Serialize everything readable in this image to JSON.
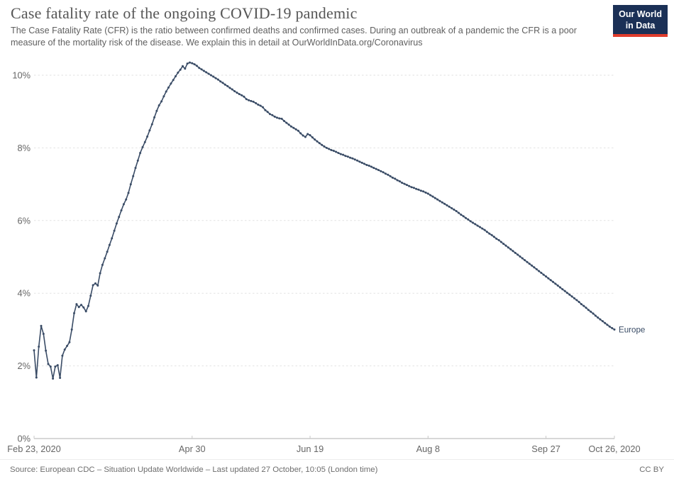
{
  "header": {
    "title": "Case fatality rate of the ongoing COVID-19 pandemic",
    "subtitle_lines": [
      "The Case Fatality Rate (CFR) is the ratio between confirmed deaths and confirmed cases. During an outbreak of a pandemic the CFR is a poor",
      "measure of the mortality risk of the disease. We explain this in detail at OurWorldInData.org/Coronavirus"
    ],
    "logo_line1": "Our World",
    "logo_line2": "in Data"
  },
  "footer": {
    "source": "Source: European CDC – Situation Update Worldwide – Last updated 27 October, 10:05 (London time)",
    "license": "CC BY"
  },
  "colors": {
    "series": "#3a4c66",
    "gridline": "#e2e2e2",
    "axis_line": "#b0b0b0",
    "tick_label": "#666666",
    "logo_bg": "#1b3056",
    "logo_stripe": "#e03c2c"
  },
  "chart_data": {
    "type": "line",
    "title": "Case fatality rate of the ongoing COVID-19 pandemic",
    "grid": "dashed-horizontal",
    "legend": "end-of-line-label",
    "ylim": [
      0,
      10.8
    ],
    "y_ticks": [
      0,
      2,
      4,
      6,
      8,
      10
    ],
    "y_tick_suffix": "%",
    "x_start_date": "2020-02-23",
    "x_end_date": "2020-10-26",
    "x_cadence": "daily",
    "x_ticks": [
      {
        "label": "Feb 23, 2020",
        "day": 0
      },
      {
        "label": "Apr 30",
        "day": 67
      },
      {
        "label": "Jun 19",
        "day": 117
      },
      {
        "label": "Aug 8",
        "day": 167
      },
      {
        "label": "Sep 27",
        "day": 217
      },
      {
        "label": "Oct 26, 2020",
        "day": 246
      }
    ],
    "series": [
      {
        "name": "Europe",
        "color": "#3a4c66",
        "unit": "%",
        "values": [
          2.43,
          1.68,
          2.53,
          3.1,
          2.88,
          2.42,
          2.05,
          1.98,
          1.65,
          1.98,
          2.02,
          1.67,
          2.28,
          2.45,
          2.55,
          2.65,
          3.0,
          3.45,
          3.7,
          3.62,
          3.68,
          3.61,
          3.5,
          3.65,
          3.93,
          4.22,
          4.27,
          4.21,
          4.55,
          4.78,
          4.96,
          5.14,
          5.33,
          5.51,
          5.72,
          5.92,
          6.1,
          6.28,
          6.45,
          6.58,
          6.76,
          7.0,
          7.22,
          7.45,
          7.65,
          7.86,
          8.02,
          8.16,
          8.31,
          8.48,
          8.65,
          8.84,
          9.02,
          9.17,
          9.28,
          9.42,
          9.55,
          9.66,
          9.77,
          9.87,
          9.97,
          10.07,
          10.15,
          10.25,
          10.18,
          10.32,
          10.35,
          10.33,
          10.3,
          10.26,
          10.2,
          10.16,
          10.12,
          10.08,
          10.04,
          10.0,
          9.96,
          9.92,
          9.88,
          9.83,
          9.79,
          9.74,
          9.7,
          9.65,
          9.61,
          9.56,
          9.52,
          9.48,
          9.45,
          9.41,
          9.34,
          9.31,
          9.29,
          9.27,
          9.23,
          9.19,
          9.16,
          9.12,
          9.04,
          8.99,
          8.93,
          8.9,
          8.86,
          8.83,
          8.81,
          8.8,
          8.74,
          8.69,
          8.64,
          8.59,
          8.55,
          8.51,
          8.47,
          8.4,
          8.34,
          8.3,
          8.38,
          8.35,
          8.29,
          8.23,
          8.18,
          8.13,
          8.08,
          8.04,
          8.0,
          7.97,
          7.94,
          7.92,
          7.89,
          7.86,
          7.83,
          7.81,
          7.78,
          7.76,
          7.73,
          7.71,
          7.68,
          7.65,
          7.62,
          7.59,
          7.56,
          7.53,
          7.51,
          7.48,
          7.45,
          7.42,
          7.39,
          7.36,
          7.33,
          7.29,
          7.26,
          7.22,
          7.18,
          7.15,
          7.11,
          7.08,
          7.04,
          7.01,
          6.98,
          6.95,
          6.92,
          6.9,
          6.87,
          6.85,
          6.82,
          6.8,
          6.77,
          6.74,
          6.7,
          6.66,
          6.62,
          6.58,
          6.54,
          6.5,
          6.46,
          6.42,
          6.38,
          6.34,
          6.3,
          6.26,
          6.21,
          6.16,
          6.12,
          6.07,
          6.03,
          5.98,
          5.94,
          5.9,
          5.86,
          5.82,
          5.78,
          5.74,
          5.69,
          5.64,
          5.6,
          5.55,
          5.5,
          5.46,
          5.41,
          5.36,
          5.31,
          5.26,
          5.21,
          5.16,
          5.11,
          5.06,
          5.01,
          4.96,
          4.91,
          4.86,
          4.81,
          4.76,
          4.71,
          4.66,
          4.61,
          4.56,
          4.51,
          4.46,
          4.41,
          4.36,
          4.31,
          4.26,
          4.21,
          4.16,
          4.11,
          4.06,
          4.01,
          3.96,
          3.91,
          3.86,
          3.81,
          3.76,
          3.7,
          3.65,
          3.6,
          3.54,
          3.49,
          3.44,
          3.38,
          3.33,
          3.28,
          3.23,
          3.18,
          3.13,
          3.08,
          3.04,
          3.0
        ]
      }
    ]
  }
}
